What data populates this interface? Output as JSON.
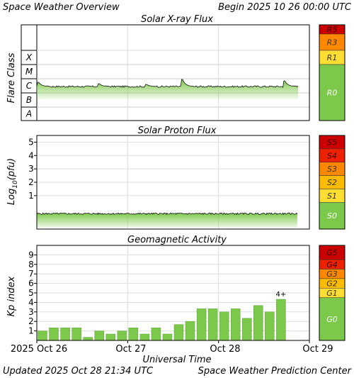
{
  "header": {
    "title": "Space Weather Overview",
    "begin": "Begin 2025 10 26 00:00 UTC"
  },
  "footer": {
    "updated": "Updated 2025 Oct 28 21:34 UTC",
    "source": "Space Weather Prediction Center"
  },
  "colors": {
    "data_green": "#7cc84a",
    "grid": "#dddddd",
    "frame": "#000000"
  },
  "chart_data": [
    {
      "type": "area",
      "title": "Solar X-ray Flux",
      "ylabel": "Flare Class",
      "y_classes": [
        "X",
        "M",
        "C",
        "B",
        "A"
      ],
      "xlim_hours": [
        0,
        72
      ],
      "baseline_class_value": 2.45,
      "peaks": [
        {
          "hour": 0.5,
          "value": 2.75
        },
        {
          "hour": 16.5,
          "value": 2.65
        },
        {
          "hour": 29.0,
          "value": 2.6
        },
        {
          "hour": 38.5,
          "value": 2.95
        },
        {
          "hour": 65.5,
          "value": 2.85
        }
      ],
      "scale": [
        {
          "label": "R5",
          "color": "#cc0000"
        },
        {
          "label": "R3",
          "color": "#ff8800"
        },
        {
          "label": "R1",
          "color": "#ffdd33"
        },
        {
          "label": "R0",
          "color": "#7cc84a"
        }
      ]
    },
    {
      "type": "area",
      "title": "Solar Proton Flux",
      "ylabel": "Log10(pfu)",
      "ylabel_parts": [
        "Log",
        "10",
        "(pfu)"
      ],
      "yticks": [
        1,
        2,
        3,
        4,
        5
      ],
      "ylim": [
        -1.5,
        5.5
      ],
      "xlim_hours": [
        0,
        72
      ],
      "baseline_log_value": -0.35,
      "scale": [
        {
          "label": "S5",
          "color": "#cc0000"
        },
        {
          "label": "S4",
          "color": "#ee2200"
        },
        {
          "label": "S3",
          "color": "#ff8800"
        },
        {
          "label": "S2",
          "color": "#ffbb00"
        },
        {
          "label": "S1",
          "color": "#ffdd33"
        },
        {
          "label": "S0",
          "color": "#7cc84a"
        }
      ]
    },
    {
      "type": "bar",
      "title": "Geomagnetic Activity",
      "ylabel": "Kp index",
      "yticks": [
        1,
        2,
        3,
        4,
        5,
        6,
        7,
        8,
        9
      ],
      "ylim": [
        0,
        10
      ],
      "bar_width_hours": 3,
      "values": [
        1.0,
        1.33,
        1.33,
        1.33,
        0.33,
        1.0,
        0.67,
        1.0,
        1.33,
        0.67,
        1.33,
        0.67,
        1.67,
        2.0,
        3.33,
        3.33,
        3.0,
        3.33,
        2.33,
        3.67,
        3.0,
        4.33
      ],
      "annotation": {
        "index": 21,
        "text": "4+"
      },
      "xlabel": "Universal Time",
      "xtick_labels": [
        "2025 Oct 26",
        "Oct 27",
        "Oct 28",
        "Oct 29"
      ],
      "xticks_hours": [
        0,
        24,
        48,
        72
      ],
      "scale": [
        {
          "label": "G5",
          "color": "#cc0000"
        },
        {
          "label": "G4",
          "color": "#ee2200"
        },
        {
          "label": "G3",
          "color": "#ff8800"
        },
        {
          "label": "G2",
          "color": "#ffbb00"
        },
        {
          "label": "G1",
          "color": "#ffdd33"
        },
        {
          "label": "G0",
          "color": "#7cc84a"
        }
      ]
    }
  ]
}
